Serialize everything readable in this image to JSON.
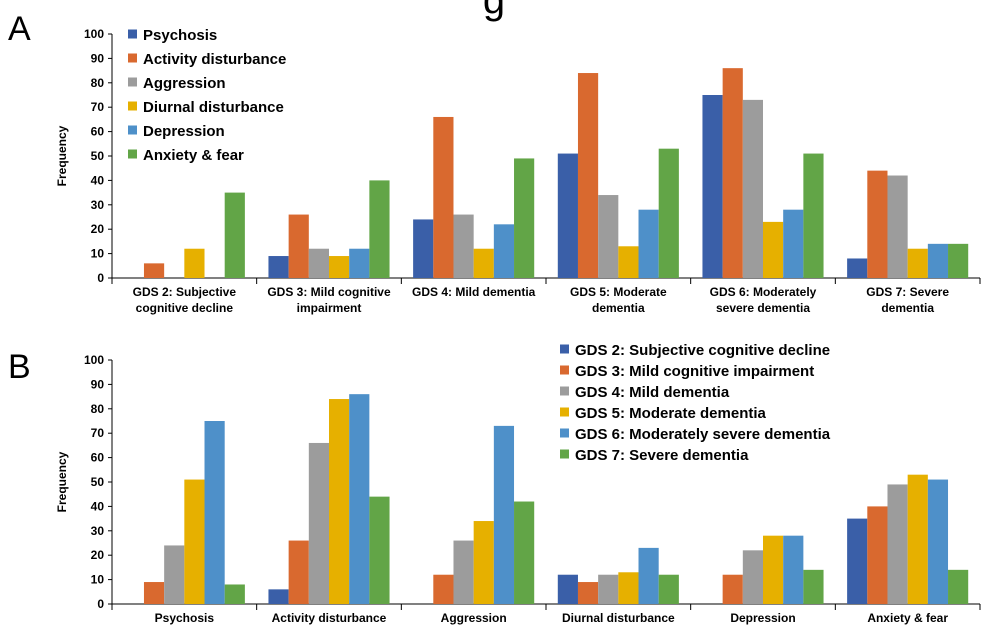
{
  "header": {
    "title": "g"
  },
  "chart_data": [
    {
      "panel": "A",
      "type": "bar",
      "ylabel": "Frequency",
      "ylim": [
        0,
        100
      ],
      "yticks": [
        0,
        10,
        20,
        30,
        40,
        50,
        60,
        70,
        80,
        90,
        100
      ],
      "categories": [
        [
          "GDS 2: Subjective",
          "cognitive decline"
        ],
        [
          "GDS 3: Mild cognitive",
          "impairment"
        ],
        [
          "GDS 4: Mild dementia"
        ],
        [
          "GDS 5: Moderate",
          "dementia"
        ],
        [
          "GDS 6: Moderately",
          "severe dementia"
        ],
        [
          "GDS 7: Severe",
          "dementia"
        ]
      ],
      "legend_position": "top-left",
      "series": [
        {
          "name": "Psychosis",
          "color": "#3a5fa8",
          "values": [
            0,
            9,
            24,
            51,
            75,
            8
          ]
        },
        {
          "name": "Activity disturbance",
          "color": "#d9692f",
          "values": [
            6,
            26,
            66,
            84,
            86,
            44
          ]
        },
        {
          "name": "Aggression",
          "color": "#9c9c9c",
          "values": [
            0,
            12,
            26,
            34,
            73,
            42
          ]
        },
        {
          "name": "Diurnal disturbance",
          "color": "#e6b000",
          "values": [
            12,
            9,
            12,
            13,
            23,
            12
          ]
        },
        {
          "name": "Depression",
          "color": "#4e90c9",
          "values": [
            0,
            12,
            22,
            28,
            28,
            14
          ]
        },
        {
          "name": "Anxiety & fear",
          "color": "#62a547",
          "values": [
            35,
            40,
            49,
            53,
            51,
            14
          ]
        }
      ]
    },
    {
      "panel": "B",
      "type": "bar",
      "ylabel": "Frequency",
      "ylim": [
        0,
        100
      ],
      "yticks": [
        0,
        10,
        20,
        30,
        40,
        50,
        60,
        70,
        80,
        90,
        100
      ],
      "categories": [
        [
          "Psychosis"
        ],
        [
          "Activity disturbance"
        ],
        [
          "Aggression"
        ],
        [
          "Diurnal disturbance"
        ],
        [
          "Depression"
        ],
        [
          "Anxiety & fear"
        ]
      ],
      "legend_position": "top-right",
      "series": [
        {
          "name": "GDS 2: Subjective cognitive decline",
          "color": "#3a5fa8",
          "values": [
            0,
            6,
            0,
            12,
            0,
            35
          ]
        },
        {
          "name": "GDS 3: Mild cognitive impairment",
          "color": "#d9692f",
          "values": [
            9,
            26,
            12,
            9,
            12,
            40
          ]
        },
        {
          "name": "GDS 4: Mild dementia",
          "color": "#9c9c9c",
          "values": [
            24,
            66,
            26,
            12,
            22,
            49
          ]
        },
        {
          "name": "GDS 5: Moderate dementia",
          "color": "#e6b000",
          "values": [
            51,
            84,
            34,
            13,
            28,
            53
          ]
        },
        {
          "name": "GDS 6: Moderately severe dementia",
          "color": "#4e90c9",
          "values": [
            75,
            86,
            73,
            23,
            28,
            51
          ]
        },
        {
          "name": "GDS 7: Severe dementia",
          "color": "#62a547",
          "values": [
            8,
            44,
            42,
            12,
            14,
            14
          ]
        }
      ]
    }
  ]
}
